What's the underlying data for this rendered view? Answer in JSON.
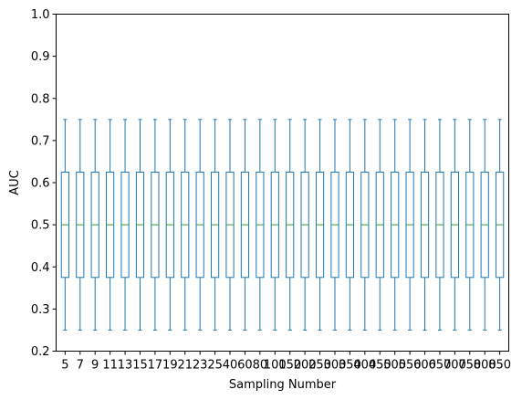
{
  "chart_data": {
    "type": "box",
    "xlabel": "Sampling Number",
    "ylabel": "AUC",
    "ylim": [
      0.2,
      1.0
    ],
    "yticks": [
      "0.2",
      "0.3",
      "0.4",
      "0.5",
      "0.6",
      "0.7",
      "0.8",
      "0.9",
      "1.0"
    ],
    "categories": [
      "5",
      "7",
      "9",
      "11",
      "13",
      "15",
      "17",
      "19",
      "21",
      "23",
      "25",
      "40",
      "60",
      "80",
      "100",
      "150",
      "200",
      "250",
      "300",
      "350",
      "400",
      "450",
      "500",
      "550",
      "600",
      "650",
      "700",
      "750",
      "800",
      "850"
    ],
    "boxes": {
      "min": 0.25,
      "q1": 0.375,
      "median": 0.5,
      "q3": 0.625,
      "max": 0.75
    },
    "colors": {
      "box": "#1f77b4",
      "median": "#2ca02c",
      "axis": "#000000"
    },
    "grid": false,
    "legend": "none"
  }
}
